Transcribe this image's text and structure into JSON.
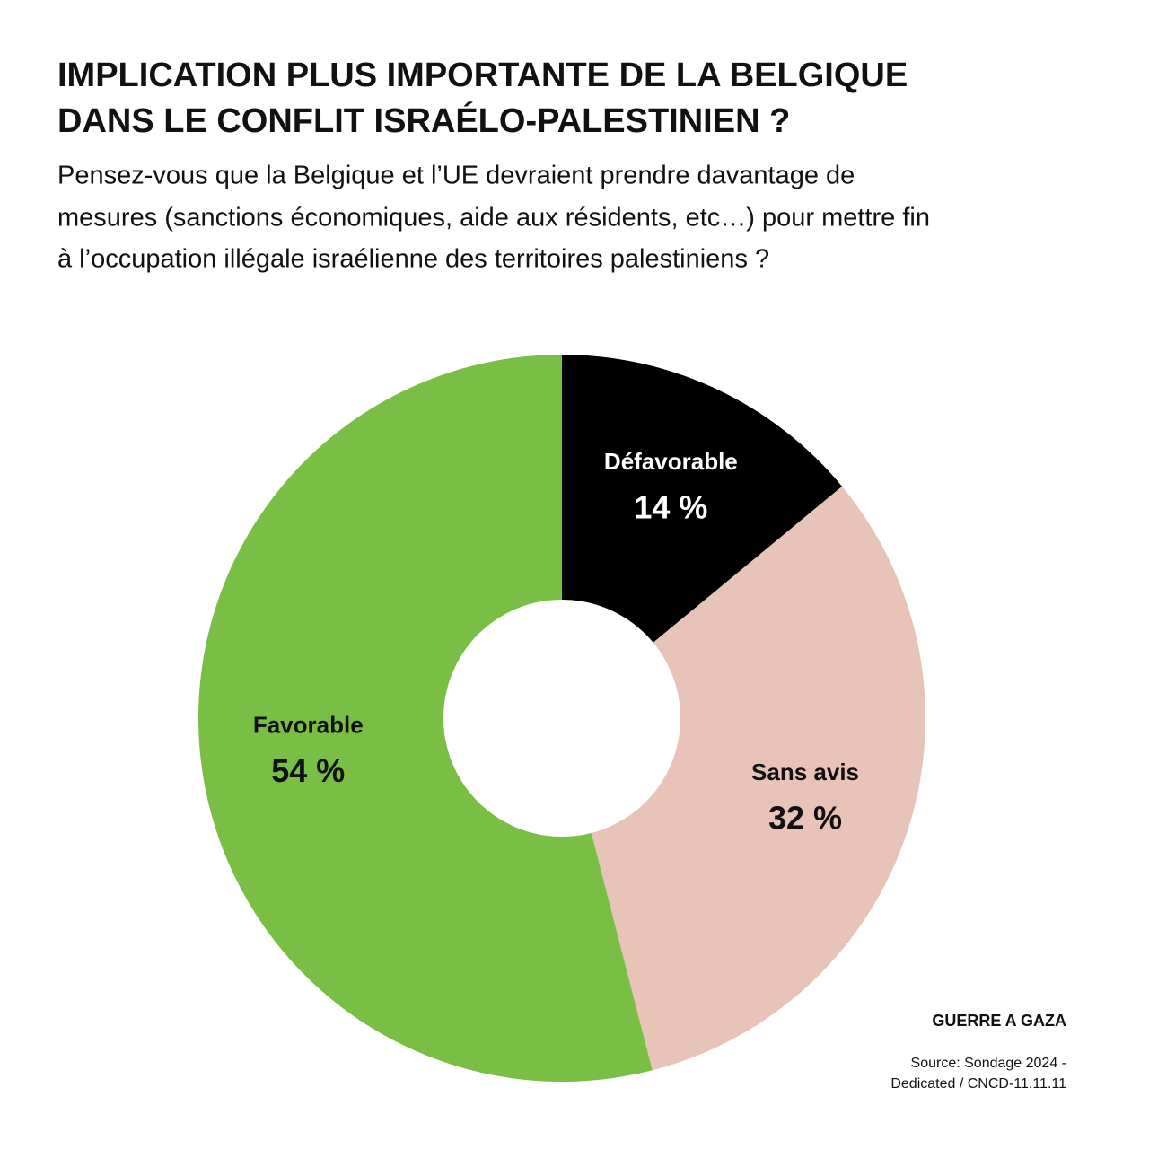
{
  "chart_data": {
    "type": "donut",
    "title": [
      "IMPLICATION PLUS IMPORTANTE DE LA BELGIQUE",
      "DANS LE CONFLIT ISRAÉLO-PALESTINIEN ?"
    ],
    "subtitle": [
      "Pensez-vous que la Belgique et l’UE devraient prendre davantage de",
      "mesures (sanctions économiques, aide aux résidents, etc…) pour mettre fin",
      "à l’occupation illégale israélienne des territoires palestiniens ?"
    ],
    "categories": [
      "Défavorable",
      "Sans avis",
      "Favorable"
    ],
    "values": [
      14,
      32,
      54
    ],
    "value_labels": [
      "14 %",
      "32 %",
      "54 %"
    ],
    "colors": [
      "#000000",
      "#e8c4b8",
      "#7abf45"
    ],
    "tag": "GUERRE A GAZA",
    "source": [
      "Source: Sondage 2024 -",
      "Dedicated /  CNCD-11.11.11"
    ]
  }
}
